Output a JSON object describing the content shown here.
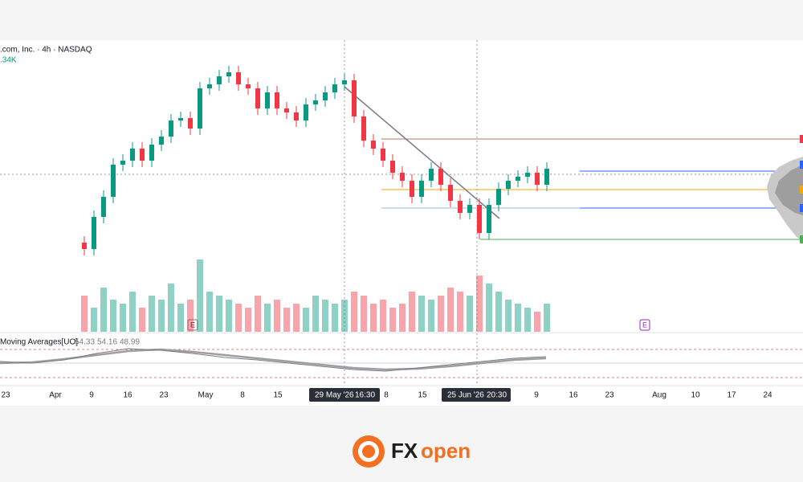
{
  "header": {
    "symbol": ".com, Inc. · 4h · NASDAQ",
    "volume": ".34K"
  },
  "chart_data": {
    "type": "candlestick",
    "ylim": [
      0,
      270
    ],
    "open": [
      28,
      20,
      60,
      85,
      125,
      130,
      145,
      130,
      150,
      160,
      180,
      183,
      170,
      220,
      225,
      235,
      240,
      225,
      220,
      195,
      215,
      195,
      190,
      180,
      200,
      205,
      215,
      225,
      230,
      185,
      155,
      145,
      130,
      115,
      105,
      85,
      105,
      120,
      100,
      80,
      65,
      75,
      40,
      75,
      95,
      105,
      110,
      115,
      100
    ],
    "high": [
      36,
      68,
      93,
      133,
      138,
      153,
      153,
      158,
      168,
      188,
      191,
      191,
      228,
      233,
      243,
      248,
      248,
      233,
      228,
      223,
      223,
      203,
      198,
      208,
      213,
      223,
      233,
      238,
      238,
      193,
      163,
      153,
      138,
      123,
      113,
      113,
      128,
      128,
      108,
      88,
      83,
      83,
      83,
      103,
      113,
      118,
      123,
      123,
      128
    ],
    "low": [
      12,
      12,
      52,
      77,
      117,
      122,
      122,
      122,
      142,
      152,
      172,
      162,
      162,
      212,
      217,
      227,
      217,
      212,
      187,
      187,
      187,
      182,
      172,
      172,
      192,
      197,
      207,
      217,
      177,
      147,
      137,
      122,
      107,
      97,
      77,
      77,
      97,
      92,
      72,
      57,
      57,
      32,
      32,
      67,
      87,
      97,
      102,
      92,
      92
    ],
    "close": [
      20,
      60,
      85,
      125,
      130,
      145,
      130,
      150,
      160,
      180,
      183,
      170,
      220,
      225,
      235,
      240,
      225,
      220,
      195,
      215,
      195,
      190,
      180,
      200,
      205,
      215,
      225,
      230,
      185,
      155,
      145,
      130,
      115,
      105,
      85,
      105,
      120,
      100,
      80,
      65,
      75,
      40,
      75,
      95,
      105,
      110,
      115,
      100,
      120
    ],
    "volume": [
      45,
      30,
      55,
      40,
      35,
      50,
      30,
      45,
      40,
      60,
      35,
      40,
      90,
      50,
      45,
      40,
      35,
      30,
      45,
      35,
      40,
      30,
      35,
      30,
      45,
      40,
      35,
      40,
      50,
      45,
      35,
      40,
      30,
      35,
      50,
      45,
      40,
      45,
      55,
      50,
      45,
      70,
      60,
      50,
      40,
      35,
      30,
      25,
      35
    ],
    "volume_ylim": [
      0,
      100
    ],
    "up_color": "#089981",
    "down_color": "#f23645",
    "x_labels": [
      "23",
      "Apr",
      "9",
      "16",
      "23",
      "May",
      "8",
      "15",
      "29 May '26",
      "16:30",
      "8",
      "15",
      "25 Jun '26",
      "20:30",
      "9",
      "16",
      "23",
      "Aug",
      "10",
      "17",
      "24"
    ],
    "indicator": {
      "name": "Moving Averages[UO]",
      "readings": [
        54.33,
        54.16,
        48.99
      ],
      "ylim": [
        30,
        70
      ],
      "uo": [
        50,
        48,
        52,
        60,
        66,
        64,
        60,
        55,
        52,
        48,
        44,
        40,
        38,
        42,
        46,
        50,
        54,
        56
      ],
      "ma": [
        48,
        49,
        53,
        58,
        63,
        65,
        62,
        58,
        54,
        50,
        46,
        42,
        40,
        41,
        44,
        48,
        52,
        54
      ]
    },
    "event_markers": [
      "E",
      "E"
    ]
  },
  "logo": {
    "prefix": "FX",
    "suffix": "open"
  }
}
